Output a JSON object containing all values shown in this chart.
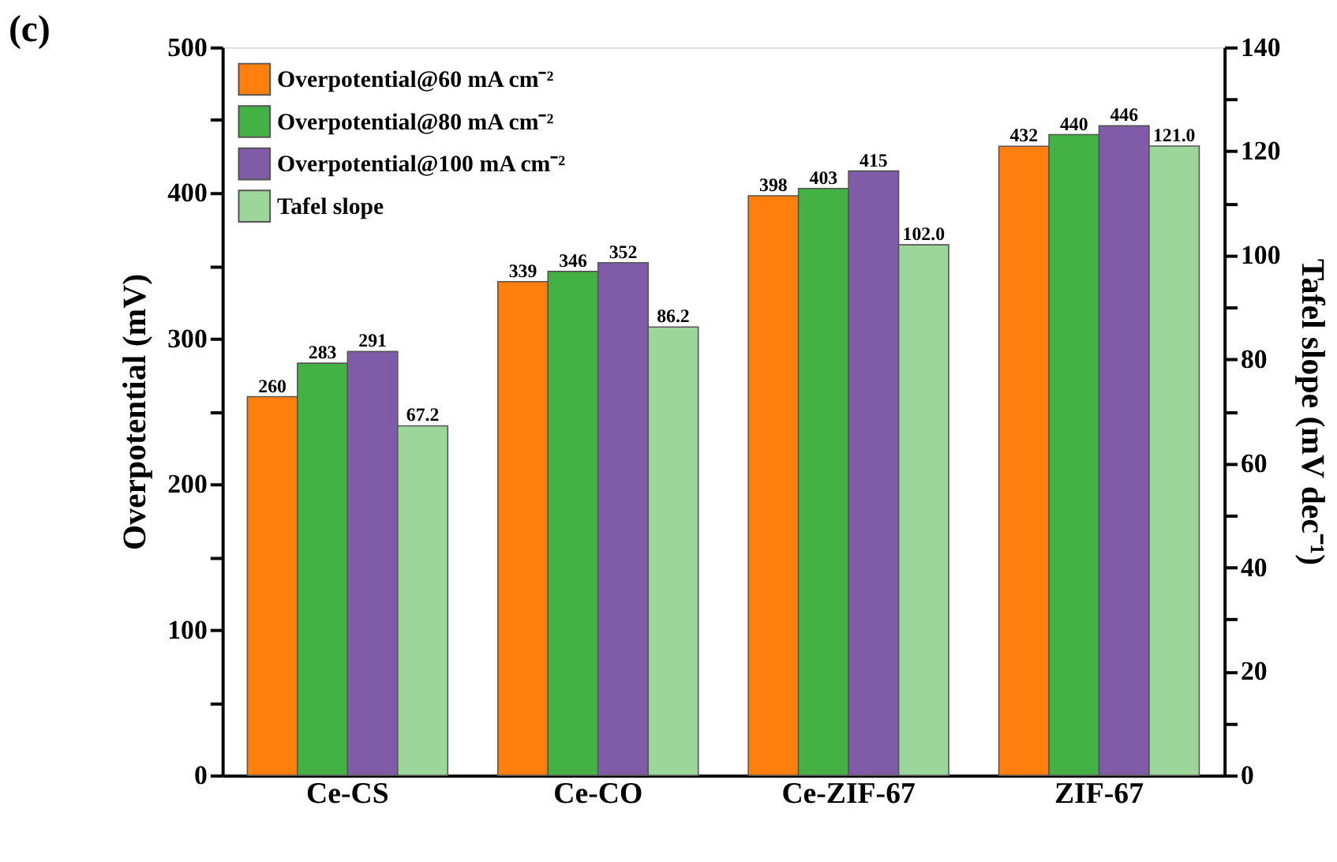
{
  "chart_data": {
    "type": "bar",
    "title": "(c)",
    "categories": [
      "Ce-CS",
      "Ce-CO",
      "Ce-ZIF-67",
      "ZIF-67"
    ],
    "series": [
      {
        "name": "Overpotential@60 mA cm⁻²",
        "color": "#ff7f0e",
        "values": [
          260,
          339,
          398,
          432
        ],
        "value_labels": [
          "260",
          "339",
          "398",
          "432"
        ]
      },
      {
        "name": "Overpotential@80 mA cm⁻²",
        "color": "#44b144",
        "values": [
          283,
          346,
          403,
          440
        ],
        "value_labels": [
          "283",
          "346",
          "403",
          "440"
        ]
      },
      {
        "name": "Overpotential@100 mA cm⁻²",
        "color": "#7f5ba8",
        "values": [
          291,
          352,
          415,
          446
        ],
        "value_labels": [
          "291",
          "352",
          "415",
          "446"
        ]
      },
      {
        "name": "Tafel slope",
        "color": "#9dd69a",
        "axis": "y2",
        "values": [
          67.2,
          86.2,
          102.0,
          121.0
        ],
        "value_labels": [
          "67.2",
          "86.2",
          "102.0",
          "121.0"
        ]
      }
    ],
    "ylabel": "Overpotential (mV)",
    "y2label": "Tafel slope (mV dec⁻¹)",
    "ylim": [
      0,
      500
    ],
    "yticks": [
      0,
      {
        "value": 50,
        "label": null
      },
      100,
      {
        "value": 150,
        "label": null
      },
      200,
      {
        "value": 250,
        "label": null
      },
      300,
      {
        "value": 350,
        "label": null
      },
      400,
      {
        "value": 450,
        "label": null
      },
      500
    ],
    "y2lim": [
      0,
      140
    ],
    "y2ticks": [
      0,
      {
        "value": 10,
        "label": null
      },
      20,
      {
        "value": 30,
        "label": null
      },
      40,
      {
        "value": 50,
        "label": null
      },
      60,
      {
        "value": 70,
        "label": null
      },
      80,
      {
        "value": 90,
        "label": null
      },
      100,
      {
        "value": 110,
        "label": null
      },
      120,
      {
        "value": 130,
        "label": null
      },
      140
    ],
    "legend": "top left",
    "grid": false
  }
}
